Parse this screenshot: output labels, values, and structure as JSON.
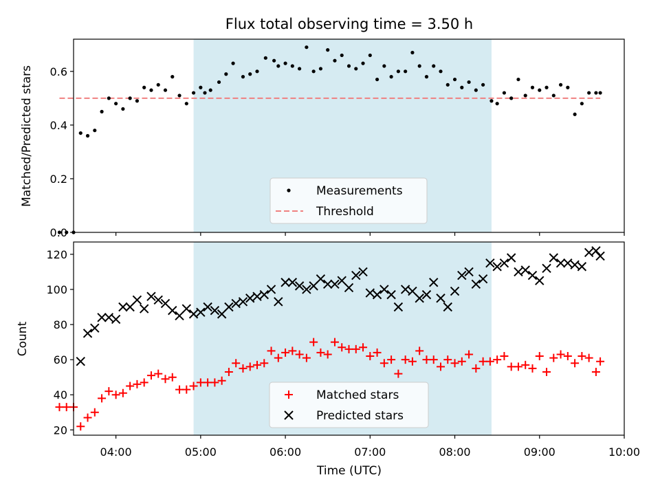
{
  "chart_data": [
    {
      "type": "scatter",
      "title": "Flux total observing time = 3.50 h",
      "ylabel": "Matched/Predicted stars",
      "xlabel": "",
      "xlim": [
        "03:30",
        "10:00"
      ],
      "ylim": [
        0,
        0.72
      ],
      "yticks": [
        0.0,
        0.2,
        0.4,
        0.6
      ],
      "ytick_labels": [
        "0.0",
        "0.2",
        "0.4",
        "0.6"
      ],
      "grid": false,
      "legend_position": "lower center",
      "shaded_interval": {
        "start": "04:55",
        "end": "08:26",
        "color": "#add8e6"
      },
      "threshold": {
        "name": "Threshold",
        "value": 0.5,
        "start": "03:20",
        "end": "09:43",
        "color": "#f08080",
        "style": "dashed"
      },
      "series": [
        {
          "name": "Measurements",
          "color": "#000000",
          "marker": "dot",
          "x": [
            "03:20",
            "03:25",
            "03:30",
            "03:35",
            "03:40",
            "03:45",
            "03:50",
            "03:55",
            "04:00",
            "04:05",
            "04:10",
            "04:15",
            "04:20",
            "04:25",
            "04:30",
            "04:35",
            "04:40",
            "04:45",
            "04:50",
            "04:55",
            "05:00",
            "05:03",
            "05:07",
            "05:13",
            "05:18",
            "05:23",
            "05:30",
            "05:35",
            "05:40",
            "05:46",
            "05:52",
            "05:55",
            "06:00",
            "06:05",
            "06:10",
            "06:15",
            "06:20",
            "06:25",
            "06:30",
            "06:35",
            "06:40",
            "06:45",
            "06:50",
            "06:55",
            "07:00",
            "07:05",
            "07:10",
            "07:15",
            "07:20",
            "07:25",
            "07:30",
            "07:35",
            "07:40",
            "07:45",
            "07:50",
            "07:55",
            "08:00",
            "08:05",
            "08:10",
            "08:15",
            "08:20",
            "08:26",
            "08:30",
            "08:35",
            "08:40",
            "08:45",
            "08:50",
            "08:55",
            "09:00",
            "09:05",
            "09:10",
            "09:15",
            "09:20",
            "09:25",
            "09:30",
            "09:35",
            "09:40",
            "09:43"
          ],
          "y": [
            0.0,
            0.0,
            0.0,
            0.37,
            0.36,
            0.38,
            0.45,
            0.5,
            0.48,
            0.46,
            0.5,
            0.49,
            0.54,
            0.53,
            0.55,
            0.53,
            0.58,
            0.51,
            0.48,
            0.52,
            0.54,
            0.52,
            0.53,
            0.56,
            0.59,
            0.63,
            0.58,
            0.59,
            0.6,
            0.65,
            0.64,
            0.62,
            0.63,
            0.62,
            0.61,
            0.69,
            0.6,
            0.61,
            0.68,
            0.64,
            0.66,
            0.62,
            0.61,
            0.63,
            0.66,
            0.57,
            0.62,
            0.58,
            0.6,
            0.6,
            0.67,
            0.62,
            0.58,
            0.62,
            0.6,
            0.55,
            0.57,
            0.54,
            0.56,
            0.53,
            0.55,
            0.49,
            0.48,
            0.52,
            0.5,
            0.57,
            0.51,
            0.54,
            0.53,
            0.54,
            0.51,
            0.55,
            0.54,
            0.44,
            0.48,
            0.52,
            0.52,
            0.52
          ]
        }
      ]
    },
    {
      "type": "scatter",
      "title": "",
      "xlabel": "Time (UTC)",
      "ylabel": "Count",
      "xlim": [
        "03:30",
        "10:00"
      ],
      "ylim": [
        17,
        127
      ],
      "xticks": [
        "04:00",
        "05:00",
        "06:00",
        "07:00",
        "08:00",
        "09:00",
        "10:00"
      ],
      "yticks": [
        20,
        40,
        60,
        80,
        100,
        120
      ],
      "ytick_labels": [
        "20",
        "40",
        "60",
        "80",
        "100",
        "120"
      ],
      "grid": false,
      "legend_position": "lower center",
      "shaded_interval": {
        "start": "04:55",
        "end": "08:26",
        "color": "#add8e6"
      },
      "series": [
        {
          "name": "Matched stars",
          "color": "#ff0000",
          "marker": "plus",
          "x": [
            "03:20",
            "03:25",
            "03:30",
            "03:35",
            "03:40",
            "03:45",
            "03:50",
            "03:55",
            "04:00",
            "04:05",
            "04:10",
            "04:15",
            "04:20",
            "04:25",
            "04:30",
            "04:35",
            "04:40",
            "04:45",
            "04:50",
            "04:55",
            "05:00",
            "05:05",
            "05:10",
            "05:15",
            "05:20",
            "05:25",
            "05:30",
            "05:35",
            "05:40",
            "05:45",
            "05:50",
            "05:55",
            "06:00",
            "06:05",
            "06:10",
            "06:15",
            "06:20",
            "06:25",
            "06:30",
            "06:35",
            "06:40",
            "06:45",
            "06:50",
            "06:55",
            "07:00",
            "07:05",
            "07:10",
            "07:15",
            "07:20",
            "07:25",
            "07:30",
            "07:35",
            "07:40",
            "07:45",
            "07:50",
            "07:55",
            "08:00",
            "08:05",
            "08:10",
            "08:15",
            "08:20",
            "08:25",
            "08:30",
            "08:35",
            "08:40",
            "08:45",
            "08:50",
            "08:55",
            "09:00",
            "09:05",
            "09:10",
            "09:15",
            "09:20",
            "09:25",
            "09:30",
            "09:35",
            "09:40",
            "09:43"
          ],
          "y": [
            33,
            33,
            33,
            22,
            27,
            30,
            38,
            42,
            40,
            41,
            45,
            46,
            47,
            51,
            52,
            49,
            50,
            43,
            43,
            45,
            47,
            47,
            47,
            48,
            53,
            58,
            55,
            56,
            57,
            58,
            65,
            61,
            64,
            65,
            63,
            61,
            70,
            64,
            63,
            70,
            67,
            66,
            66,
            67,
            62,
            64,
            58,
            60,
            52,
            60,
            59,
            65,
            60,
            60,
            56,
            60,
            58,
            59,
            63,
            55,
            59,
            59,
            60,
            62,
            56,
            56,
            57,
            55,
            62,
            53,
            61,
            63,
            62,
            58,
            62,
            61,
            53,
            59
          ]
        },
        {
          "name": "Predicted stars",
          "color": "#000000",
          "marker": "x",
          "x": [
            "03:35",
            "03:40",
            "03:45",
            "03:50",
            "03:55",
            "04:00",
            "04:05",
            "04:10",
            "04:15",
            "04:20",
            "04:25",
            "04:30",
            "04:35",
            "04:40",
            "04:45",
            "04:50",
            "04:55",
            "05:00",
            "05:05",
            "05:10",
            "05:15",
            "05:20",
            "05:25",
            "05:30",
            "05:35",
            "05:40",
            "05:45",
            "05:50",
            "05:55",
            "06:00",
            "06:05",
            "06:10",
            "06:15",
            "06:20",
            "06:25",
            "06:30",
            "06:35",
            "06:40",
            "06:45",
            "06:50",
            "06:55",
            "07:00",
            "07:05",
            "07:10",
            "07:15",
            "07:20",
            "07:25",
            "07:30",
            "07:35",
            "07:40",
            "07:45",
            "07:50",
            "07:55",
            "08:00",
            "08:05",
            "08:10",
            "08:15",
            "08:20",
            "08:25",
            "08:30",
            "08:35",
            "08:40",
            "08:45",
            "08:50",
            "08:55",
            "09:00",
            "09:05",
            "09:10",
            "09:15",
            "09:20",
            "09:25",
            "09:30",
            "09:35",
            "09:40",
            "09:43"
          ],
          "y": [
            59,
            75,
            78,
            84,
            84,
            83,
            90,
            90,
            94,
            89,
            96,
            94,
            92,
            88,
            85,
            89,
            86,
            87,
            90,
            88,
            86,
            90,
            92,
            93,
            95,
            96,
            97,
            100,
            93,
            104,
            104,
            102,
            100,
            102,
            106,
            103,
            103,
            105,
            101,
            108,
            110,
            98,
            97,
            100,
            97,
            90,
            100,
            99,
            95,
            97,
            104,
            95,
            90,
            99,
            108,
            110,
            103,
            106,
            115,
            113,
            115,
            118,
            110,
            111,
            108,
            105,
            112,
            118,
            115,
            115,
            114,
            113,
            121,
            122,
            119
          ]
        }
      ]
    }
  ]
}
